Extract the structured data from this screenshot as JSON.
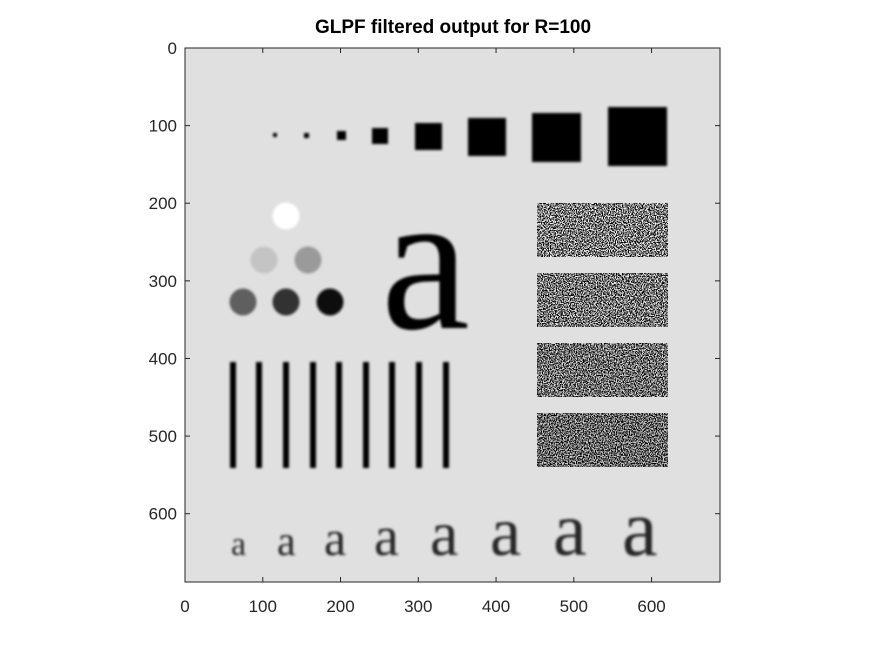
{
  "chart_data": {
    "type": "image",
    "title": "GLPF filtered output for R=100",
    "xlim": [
      0,
      688
    ],
    "ylim": [
      0,
      688
    ],
    "y_direction": "reverse",
    "xticks": [
      0,
      100,
      200,
      300,
      400,
      500,
      600
    ],
    "yticks": [
      0,
      100,
      200,
      300,
      400,
      500,
      600
    ]
  }
}
